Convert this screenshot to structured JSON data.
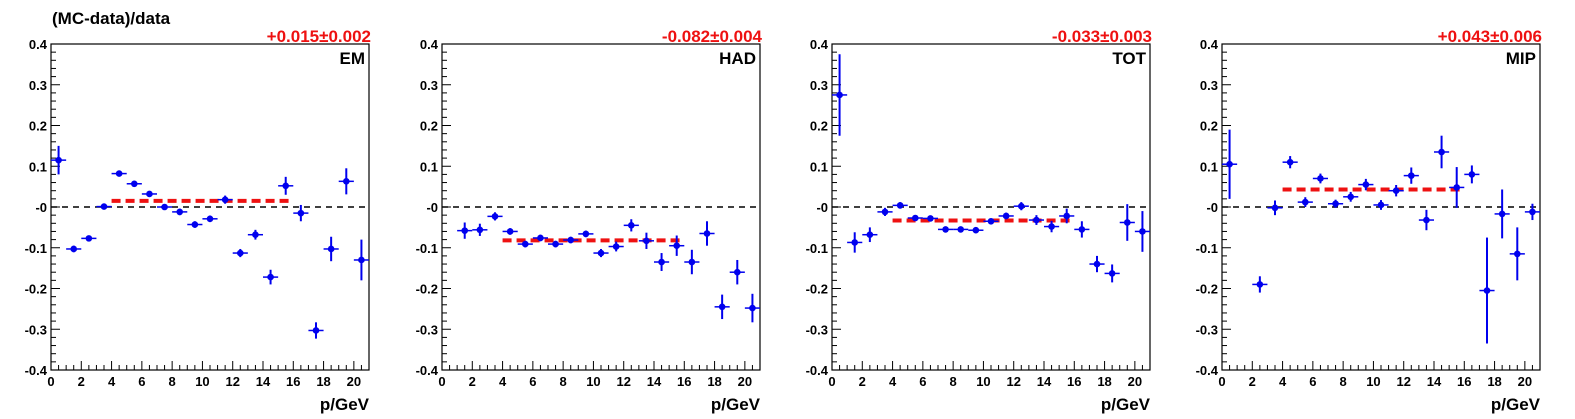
{
  "figure": {
    "ylabel": "(MC-data)/data",
    "xlabel": "p/GeV"
  },
  "colors": {
    "points": "#0000ee",
    "fit": "#ee1111",
    "label": "#ee1111",
    "zero_line": "#000000"
  },
  "chart_data": [
    {
      "type": "scatter",
      "title": "EM",
      "fit_label": "+0.015±0.002",
      "xlim": [
        0,
        21
      ],
      "ylim": [
        -0.4,
        0.4
      ],
      "xticks": [
        0,
        2,
        4,
        6,
        8,
        10,
        12,
        14,
        16,
        18,
        20
      ],
      "yticks": [
        -0.4,
        -0.3,
        -0.2,
        -0.1,
        0,
        0.1,
        0.2,
        0.3,
        0.4
      ],
      "ytick_labels": [
        "-0.4",
        "-0.3",
        "-0.2",
        "-0.1",
        "-0",
        "0.1",
        "0.2",
        "0.3",
        "0.4"
      ],
      "points": [
        {
          "x": 0.5,
          "y": 0.115,
          "err": 0.035
        },
        {
          "x": 1.5,
          "y": -0.103,
          "err": 0.008
        },
        {
          "x": 2.5,
          "y": -0.077,
          "err": 0.006
        },
        {
          "x": 3.5,
          "y": 0.001,
          "err": 0.005
        },
        {
          "x": 4.5,
          "y": 0.082,
          "err": 0.006
        },
        {
          "x": 5.5,
          "y": 0.057,
          "err": 0.006
        },
        {
          "x": 6.5,
          "y": 0.032,
          "err": 0.006
        },
        {
          "x": 7.5,
          "y": 0.0,
          "err": 0.006
        },
        {
          "x": 8.5,
          "y": -0.012,
          "err": 0.008
        },
        {
          "x": 9.5,
          "y": -0.043,
          "err": 0.008
        },
        {
          "x": 10.5,
          "y": -0.029,
          "err": 0.008
        },
        {
          "x": 11.5,
          "y": 0.018,
          "err": 0.01
        },
        {
          "x": 12.5,
          "y": -0.113,
          "err": 0.01
        },
        {
          "x": 13.5,
          "y": -0.068,
          "err": 0.012
        },
        {
          "x": 14.5,
          "y": -0.172,
          "err": 0.018
        },
        {
          "x": 15.5,
          "y": 0.052,
          "err": 0.022
        },
        {
          "x": 16.5,
          "y": -0.015,
          "err": 0.02
        },
        {
          "x": 17.5,
          "y": -0.303,
          "err": 0.02
        },
        {
          "x": 18.5,
          "y": -0.103,
          "err": 0.03
        },
        {
          "x": 19.5,
          "y": 0.063,
          "err": 0.032
        },
        {
          "x": 20.5,
          "y": -0.13,
          "err": 0.05
        }
      ],
      "fit": {
        "x_start": 4,
        "x_end": 16,
        "y": 0.015
      }
    },
    {
      "type": "scatter",
      "title": "HAD",
      "fit_label": "-0.082±0.004",
      "xlim": [
        0,
        21
      ],
      "ylim": [
        -0.4,
        0.4
      ],
      "xticks": [
        0,
        2,
        4,
        6,
        8,
        10,
        12,
        14,
        16,
        18,
        20
      ],
      "yticks": [
        -0.4,
        -0.3,
        -0.2,
        -0.1,
        0,
        0.1,
        0.2,
        0.3,
        0.4
      ],
      "ytick_labels": [
        "-0.4",
        "-0.3",
        "-0.2",
        "-0.1",
        "-0",
        "0.1",
        "0.2",
        "0.3",
        "0.4"
      ],
      "points": [
        {
          "x": 1.5,
          "y": -0.058,
          "err": 0.02
        },
        {
          "x": 2.5,
          "y": -0.056,
          "err": 0.015
        },
        {
          "x": 3.5,
          "y": -0.023,
          "err": 0.01
        },
        {
          "x": 4.5,
          "y": -0.06,
          "err": 0.008
        },
        {
          "x": 5.5,
          "y": -0.091,
          "err": 0.008
        },
        {
          "x": 6.5,
          "y": -0.076,
          "err": 0.008
        },
        {
          "x": 7.5,
          "y": -0.091,
          "err": 0.008
        },
        {
          "x": 8.5,
          "y": -0.081,
          "err": 0.008
        },
        {
          "x": 9.5,
          "y": -0.066,
          "err": 0.008
        },
        {
          "x": 10.5,
          "y": -0.113,
          "err": 0.01
        },
        {
          "x": 11.5,
          "y": -0.097,
          "err": 0.012
        },
        {
          "x": 12.5,
          "y": -0.045,
          "err": 0.015
        },
        {
          "x": 13.5,
          "y": -0.083,
          "err": 0.02
        },
        {
          "x": 14.5,
          "y": -0.135,
          "err": 0.022
        },
        {
          "x": 15.5,
          "y": -0.095,
          "err": 0.025
        },
        {
          "x": 16.5,
          "y": -0.135,
          "err": 0.03
        },
        {
          "x": 17.5,
          "y": -0.065,
          "err": 0.03
        },
        {
          "x": 18.5,
          "y": -0.245,
          "err": 0.03
        },
        {
          "x": 19.5,
          "y": -0.16,
          "err": 0.03
        },
        {
          "x": 20.5,
          "y": -0.248,
          "err": 0.035
        }
      ],
      "fit": {
        "x_start": 4,
        "x_end": 16,
        "y": -0.082
      }
    },
    {
      "type": "scatter",
      "title": "TOT",
      "fit_label": "-0.033±0.003",
      "xlim": [
        0,
        21
      ],
      "ylim": [
        -0.4,
        0.4
      ],
      "xticks": [
        0,
        2,
        4,
        6,
        8,
        10,
        12,
        14,
        16,
        18,
        20
      ],
      "yticks": [
        -0.4,
        -0.3,
        -0.2,
        -0.1,
        0,
        0.1,
        0.2,
        0.3,
        0.4
      ],
      "ytick_labels": [
        "-0.4",
        "-0.3",
        "-0.2",
        "-0.1",
        "-0",
        "0.1",
        "0.2",
        "0.3",
        "0.4"
      ],
      "points": [
        {
          "x": 0.5,
          "y": 0.275,
          "err": 0.1
        },
        {
          "x": 1.5,
          "y": -0.087,
          "err": 0.025
        },
        {
          "x": 2.5,
          "y": -0.068,
          "err": 0.018
        },
        {
          "x": 3.5,
          "y": -0.012,
          "err": 0.01
        },
        {
          "x": 4.5,
          "y": 0.004,
          "err": 0.008
        },
        {
          "x": 5.5,
          "y": -0.027,
          "err": 0.006
        },
        {
          "x": 6.5,
          "y": -0.028,
          "err": 0.006
        },
        {
          "x": 7.5,
          "y": -0.055,
          "err": 0.006
        },
        {
          "x": 8.5,
          "y": -0.055,
          "err": 0.006
        },
        {
          "x": 9.5,
          "y": -0.057,
          "err": 0.006
        },
        {
          "x": 10.5,
          "y": -0.035,
          "err": 0.006
        },
        {
          "x": 11.5,
          "y": -0.022,
          "err": 0.008
        },
        {
          "x": 12.5,
          "y": 0.002,
          "err": 0.01
        },
        {
          "x": 13.5,
          "y": -0.032,
          "err": 0.012
        },
        {
          "x": 14.5,
          "y": -0.048,
          "err": 0.014
        },
        {
          "x": 15.5,
          "y": -0.022,
          "err": 0.018
        },
        {
          "x": 16.5,
          "y": -0.055,
          "err": 0.02
        },
        {
          "x": 17.5,
          "y": -0.14,
          "err": 0.02
        },
        {
          "x": 18.5,
          "y": -0.163,
          "err": 0.022
        },
        {
          "x": 19.5,
          "y": -0.038,
          "err": 0.045
        },
        {
          "x": 20.5,
          "y": -0.06,
          "err": 0.05
        }
      ],
      "fit": {
        "x_start": 4,
        "x_end": 16,
        "y": -0.033
      }
    },
    {
      "type": "scatter",
      "title": "MIP",
      "fit_label": "+0.043±0.006",
      "xlim": [
        0,
        21
      ],
      "ylim": [
        -0.4,
        0.4
      ],
      "xticks": [
        0,
        2,
        4,
        6,
        8,
        10,
        12,
        14,
        16,
        18,
        20
      ],
      "yticks": [
        -0.4,
        -0.3,
        -0.2,
        -0.1,
        0,
        0.1,
        0.2,
        0.3,
        0.4
      ],
      "ytick_labels": [
        "-0.4",
        "-0.3",
        "-0.2",
        "-0.1",
        "-0",
        "0.1",
        "0.2",
        "0.3",
        "0.4"
      ],
      "points": [
        {
          "x": 0.5,
          "y": 0.105,
          "err": 0.085
        },
        {
          "x": 2.5,
          "y": -0.19,
          "err": 0.02
        },
        {
          "x": 3.5,
          "y": -0.002,
          "err": 0.018
        },
        {
          "x": 4.5,
          "y": 0.11,
          "err": 0.015
        },
        {
          "x": 5.5,
          "y": 0.012,
          "err": 0.012
        },
        {
          "x": 6.5,
          "y": 0.07,
          "err": 0.012
        },
        {
          "x": 7.5,
          "y": 0.008,
          "err": 0.01
        },
        {
          "x": 8.5,
          "y": 0.025,
          "err": 0.012
        },
        {
          "x": 9.5,
          "y": 0.055,
          "err": 0.014
        },
        {
          "x": 10.5,
          "y": 0.005,
          "err": 0.012
        },
        {
          "x": 11.5,
          "y": 0.04,
          "err": 0.014
        },
        {
          "x": 12.5,
          "y": 0.077,
          "err": 0.02
        },
        {
          "x": 13.5,
          "y": -0.032,
          "err": 0.025
        },
        {
          "x": 14.5,
          "y": 0.135,
          "err": 0.04
        },
        {
          "x": 15.5,
          "y": 0.048,
          "err": 0.05
        },
        {
          "x": 16.5,
          "y": 0.08,
          "err": 0.022
        },
        {
          "x": 17.5,
          "y": -0.205,
          "err": 0.13
        },
        {
          "x": 18.5,
          "y": -0.017,
          "err": 0.06
        },
        {
          "x": 19.5,
          "y": -0.115,
          "err": 0.065
        },
        {
          "x": 20.5,
          "y": -0.012,
          "err": 0.02
        }
      ],
      "fit": {
        "x_start": 4,
        "x_end": 16,
        "y": 0.043
      }
    }
  ]
}
